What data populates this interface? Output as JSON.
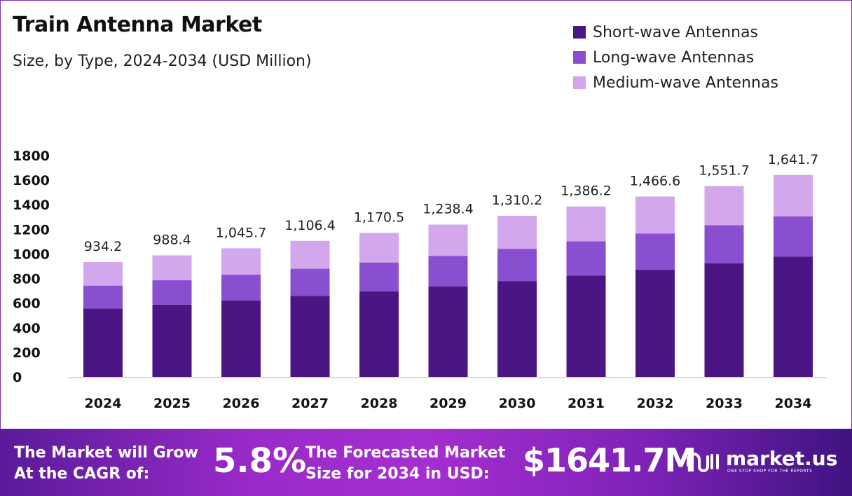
{
  "chart_data": {
    "type": "bar",
    "stacked": true,
    "title": "Train Antenna Market",
    "subtitle": "Size, by Type, 2024-2034 (USD Million)",
    "categories": [
      "2024",
      "2025",
      "2026",
      "2027",
      "2028",
      "2029",
      "2030",
      "2031",
      "2032",
      "2033",
      "2034"
    ],
    "series": [
      {
        "name": "Short-wave Antennas",
        "color": "#4b1583",
        "values": [
          555.8,
          588.1,
          622.2,
          658.3,
          696.4,
          736.8,
          779.6,
          824.8,
          872.6,
          923.3,
          976.8
        ]
      },
      {
        "name": "Long-wave Antennas",
        "color": "#8a4fd0",
        "values": [
          186.8,
          197.7,
          209.1,
          221.3,
          234.1,
          247.7,
          262.0,
          277.2,
          293.3,
          310.3,
          328.3
        ]
      },
      {
        "name": "Medium-wave Antennas",
        "color": "#d2a7ec",
        "values": [
          191.6,
          202.6,
          214.4,
          226.8,
          240.0,
          253.9,
          268.6,
          284.2,
          300.7,
          318.1,
          336.6
        ]
      }
    ],
    "totals": [
      "934.2",
      "988.4",
      "1,045.7",
      "1,106.4",
      "1,170.5",
      "1,238.4",
      "1,310.2",
      "1,386.2",
      "1,466.6",
      "1,551.7",
      "1,641.7"
    ],
    "yticks": [
      "0",
      "200",
      "400",
      "600",
      "800",
      "1000",
      "1200",
      "1400",
      "1600",
      "1800"
    ],
    "ylim": [
      0,
      1800
    ],
    "grid": false,
    "legend": "top-right",
    "xlabel": "",
    "ylabel": ""
  },
  "footer": {
    "cagr_label_1": "The Market will Grow",
    "cagr_label_2": "At the CAGR of:",
    "cagr_value": "5.8%",
    "forecast_label_1": "The Forecasted Market",
    "forecast_label_2": "Size for 2034 in USD:",
    "forecast_value": "$1641.7M",
    "brand": "market.us",
    "brand_tagline": "ONE STOP SHOP FOR THE REPORTS"
  }
}
